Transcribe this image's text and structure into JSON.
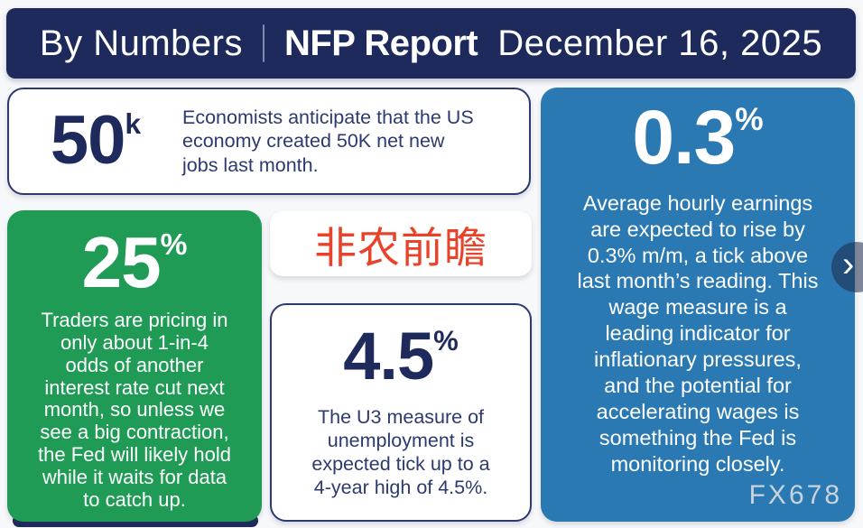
{
  "colors": {
    "header_bg": "#1d2a5b",
    "green_card": "#1f9b55",
    "blue_card": "#2b79b2",
    "navy_text": "#2c3a6e",
    "big_number_navy": "#1d2a5b",
    "red_title": "#e8432a",
    "watermark_gray": "#d9dde2",
    "page_bg": "#f7f8fa"
  },
  "header": {
    "left_title": "By Numbers",
    "report_title": "NFP Report",
    "date": "December 16, 2025"
  },
  "cards": {
    "jobs": {
      "value": "50",
      "unit": "k",
      "text": "Economists anticipate that the US\neconomy created 50K net new\njobs last month."
    },
    "rate_cut": {
      "value": "25",
      "unit": "%",
      "text": "Traders are pricing in\nonly about 1-in-4\nodds of another\ninterest rate cut next\nmonth, so unless we\nsee a big contraction,\nthe Fed will likely hold\nwhile it waits for data\nto catch up."
    },
    "cn_title": {
      "text": "非农前瞻"
    },
    "unemployment": {
      "value": "4.5",
      "unit": "%",
      "text": "The U3 measure of\nunemployment is\nexpected tick up to a\n4-year high of 4.5%."
    },
    "wages": {
      "value": "0.3",
      "unit": "%",
      "text": "Average hourly earnings\nare expected to rise by\n0.3% m/m, a tick above\nlast month’s reading. This\nwage measure is a\nleading indicator for\ninflationary pressures,\nand the potential for\naccelerating wages is\nsomething the Fed is\nmonitoring closely."
    }
  },
  "watermark": "FX678",
  "chevron": "›"
}
